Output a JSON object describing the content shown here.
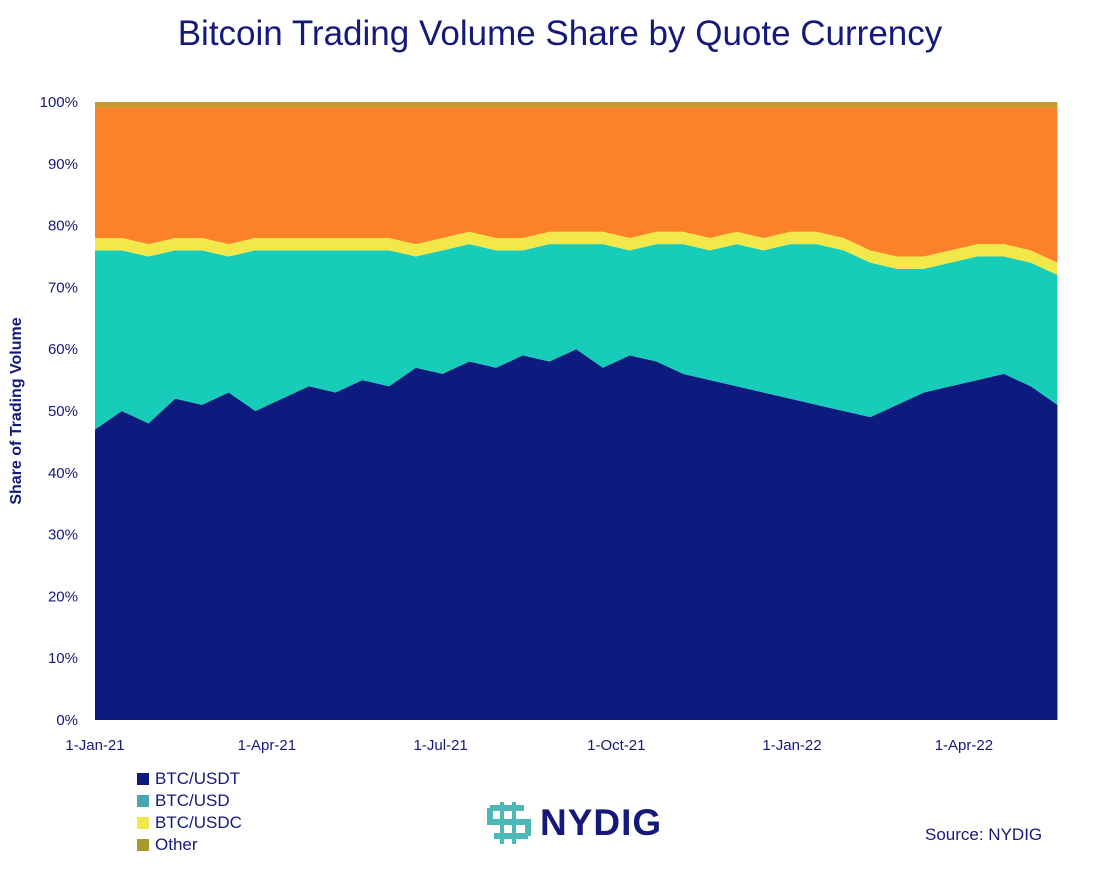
{
  "chart_data": {
    "type": "area",
    "stacked": true,
    "title": "Bitcoin Trading Volume Share by Quote Currency",
    "ylabel": "Share of Trading Volume",
    "xlabel": "",
    "ylim": [
      0,
      100
    ],
    "xlim": [
      "2021-01-01",
      "2022-05-25"
    ],
    "y_ticks": [
      "0%",
      "10%",
      "20%",
      "30%",
      "40%",
      "50%",
      "60%",
      "70%",
      "80%",
      "90%",
      "100%"
    ],
    "x_ticks": [
      {
        "date": "2021-01-01",
        "label": "1-Jan-21"
      },
      {
        "date": "2021-04-01",
        "label": "1-Apr-21"
      },
      {
        "date": "2021-07-01",
        "label": "1-Jul-21"
      },
      {
        "date": "2021-10-01",
        "label": "1-Oct-21"
      },
      {
        "date": "2022-01-01",
        "label": "1-Jan-22"
      },
      {
        "date": "2022-04-01",
        "label": "1-Apr-22"
      }
    ],
    "grid": false,
    "legend_position": "bottom-left",
    "x": [
      "2021-01-01",
      "2021-01-15",
      "2021-01-29",
      "2021-02-12",
      "2021-02-26",
      "2021-03-12",
      "2021-03-26",
      "2021-04-09",
      "2021-04-23",
      "2021-05-07",
      "2021-05-21",
      "2021-06-04",
      "2021-06-18",
      "2021-07-02",
      "2021-07-16",
      "2021-07-30",
      "2021-08-13",
      "2021-08-27",
      "2021-09-10",
      "2021-09-24",
      "2021-10-08",
      "2021-10-22",
      "2021-11-05",
      "2021-11-19",
      "2021-12-03",
      "2021-12-17",
      "2021-12-31",
      "2022-01-14",
      "2022-01-28",
      "2022-02-11",
      "2022-02-25",
      "2022-03-11",
      "2022-03-25",
      "2022-04-08",
      "2022-04-22",
      "2022-05-06",
      "2022-05-20"
    ],
    "series": [
      {
        "name": "BTC/USDT",
        "color": "#0d1a7e",
        "values": [
          47,
          50,
          48,
          52,
          51,
          53,
          50,
          52,
          54,
          53,
          55,
          54,
          57,
          56,
          58,
          57,
          59,
          58,
          60,
          57,
          59,
          58,
          56,
          55,
          54,
          53,
          52,
          51,
          50,
          49,
          51,
          53,
          54,
          55,
          56,
          54,
          51
        ]
      },
      {
        "name": "BTC/USD",
        "color": "#17cdb9",
        "values": [
          29,
          26,
          27,
          24,
          25,
          22,
          26,
          24,
          22,
          23,
          21,
          22,
          18,
          20,
          19,
          19,
          17,
          19,
          17,
          20,
          17,
          19,
          21,
          21,
          23,
          23,
          25,
          26,
          26,
          25,
          22,
          20,
          20,
          20,
          19,
          20,
          21
        ]
      },
      {
        "name": "BTC/USDC",
        "color": "#f2e84a",
        "values": [
          2,
          2,
          2,
          2,
          2,
          2,
          2,
          2,
          2,
          2,
          2,
          2,
          2,
          2,
          2,
          2,
          2,
          2,
          2,
          2,
          2,
          2,
          2,
          2,
          2,
          2,
          2,
          2,
          2,
          2,
          2,
          2,
          2,
          2,
          2,
          2,
          2
        ]
      },
      {
        "color": "#fb8228",
        "values": [
          21,
          21,
          22,
          21,
          21,
          22,
          21,
          21,
          21,
          21,
          21,
          21,
          22,
          21,
          20,
          21,
          21,
          20,
          20,
          20,
          21,
          20,
          20,
          21,
          20,
          21,
          20,
          20,
          21,
          23,
          24,
          24,
          23,
          22,
          22,
          23,
          25
        ]
      },
      {
        "name": "Other",
        "color": "#c99a2c",
        "values": [
          1,
          1,
          1,
          1,
          1,
          1,
          1,
          1,
          1,
          1,
          1,
          1,
          1,
          1,
          1,
          1,
          1,
          1,
          1,
          1,
          1,
          1,
          1,
          1,
          1,
          1,
          1,
          1,
          1,
          1,
          1,
          1,
          1,
          1,
          1,
          1,
          1
        ]
      }
    ]
  },
  "legend": [
    "BTC/USDT",
    "BTC/USD",
    "BTC/USDC",
    "Other"
  ],
  "legend_colors": [
    "#0d1a7e",
    "#4aa6b0",
    "#f2e84a",
    "#a99a2c"
  ],
  "logo": {
    "text": "NYDIG",
    "colors": [
      "#4cb8b8",
      "#14197a"
    ]
  },
  "source": "Source: NYDIG"
}
